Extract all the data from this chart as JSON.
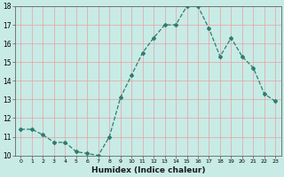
{
  "x": [
    0,
    1,
    2,
    3,
    4,
    5,
    6,
    7,
    8,
    9,
    10,
    11,
    12,
    13,
    14,
    15,
    16,
    17,
    18,
    19,
    20,
    21,
    22,
    23
  ],
  "y": [
    11.4,
    11.4,
    11.1,
    10.7,
    10.7,
    10.2,
    10.1,
    10.0,
    11.0,
    13.1,
    14.3,
    15.5,
    16.3,
    17.0,
    17.0,
    18.0,
    18.0,
    16.8,
    15.3,
    16.3,
    15.3,
    14.7,
    13.3,
    12.9
  ],
  "xlabel": "Humidex (Indice chaleur)",
  "ylim": [
    10,
    18
  ],
  "xlim": [
    -0.5,
    23.5
  ],
  "yticks": [
    10,
    11,
    12,
    13,
    14,
    15,
    16,
    17,
    18
  ],
  "xticks": [
    0,
    1,
    2,
    3,
    4,
    5,
    6,
    7,
    8,
    9,
    10,
    11,
    12,
    13,
    14,
    15,
    16,
    17,
    18,
    19,
    20,
    21,
    22,
    23
  ],
  "line_color": "#2e7d6e",
  "bg_color": "#c8ebe6",
  "grid_color": "#e8a0a0",
  "marker": "D",
  "markersize": 2.0,
  "linewidth": 0.9
}
